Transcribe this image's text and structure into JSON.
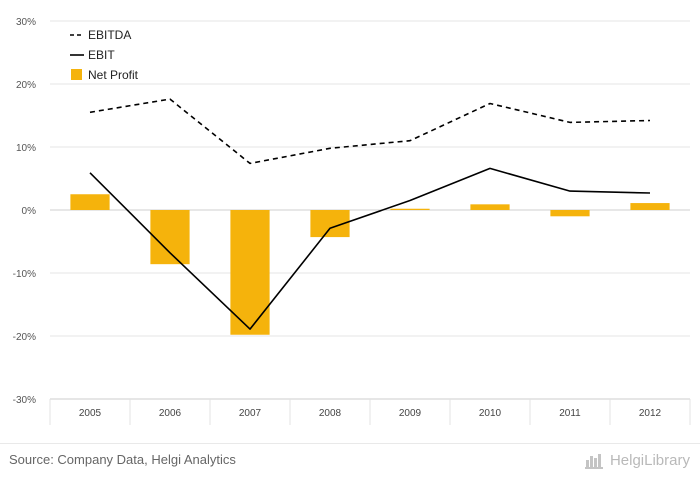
{
  "chart_data": {
    "type": "bar",
    "categories": [
      "2005",
      "2006",
      "2007",
      "2008",
      "2009",
      "2010",
      "2011",
      "2012"
    ],
    "ylim": [
      -30,
      30
    ],
    "yticks": [
      30,
      20,
      10,
      0,
      -10,
      -20,
      -30
    ],
    "ytick_labels": [
      "30%",
      "20%",
      "10%",
      "0%",
      "-10%",
      "-20%",
      "-30%"
    ],
    "grid": true,
    "legend_position": "top-left",
    "series": [
      {
        "name": "EBITDA",
        "type": "line",
        "style": "dashed",
        "color": "#000000",
        "values": [
          15.5,
          17.6,
          7.4,
          9.8,
          11.0,
          16.9,
          13.9,
          14.2
        ]
      },
      {
        "name": "EBIT",
        "type": "line",
        "style": "solid",
        "color": "#000000",
        "values": [
          5.9,
          -6.8,
          -18.9,
          -2.9,
          1.5,
          6.6,
          3.0,
          2.7
        ]
      },
      {
        "name": "Net Profit",
        "type": "bar",
        "color": "#f5b30c",
        "values": [
          2.5,
          -8.6,
          -19.8,
          -4.3,
          0.2,
          0.9,
          -1.0,
          1.1
        ]
      }
    ]
  },
  "footer": {
    "source": "Source: Company Data, Helgi Analytics",
    "brand_name": "HelgiLibrary",
    "brand_icon": "helgi-library-logo-icon"
  }
}
